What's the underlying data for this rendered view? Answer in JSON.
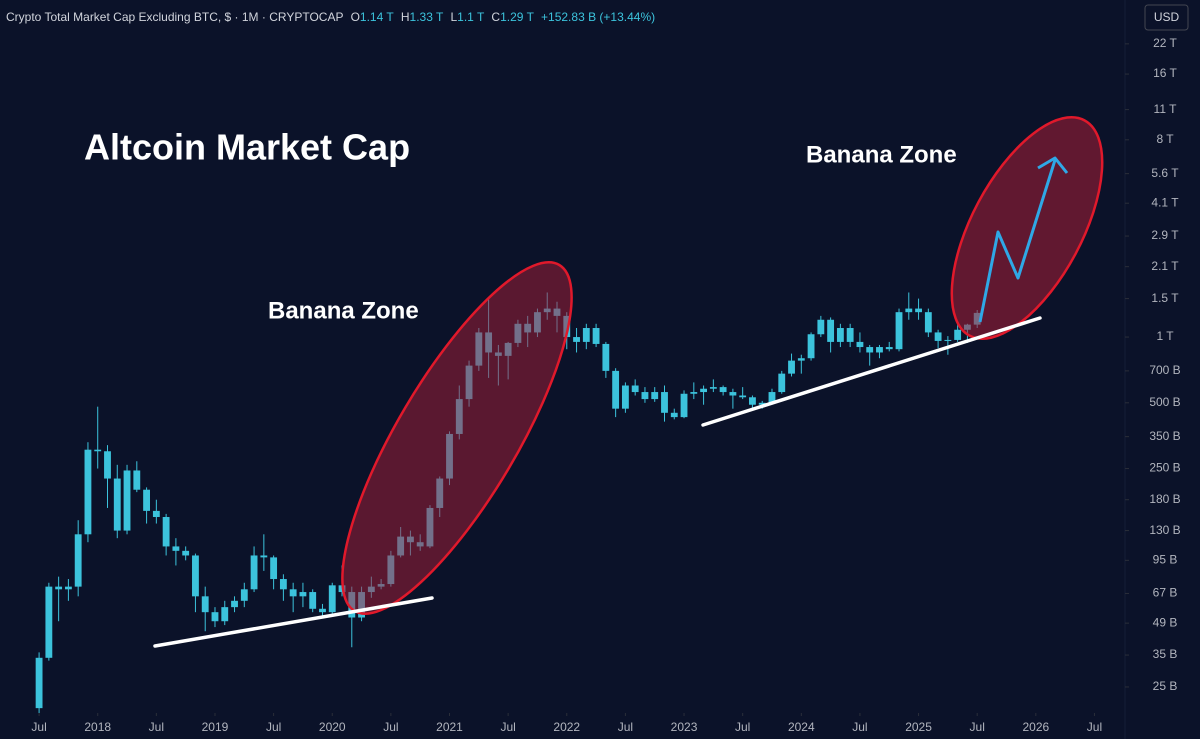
{
  "chart_data": {
    "type": "candlestick",
    "title": "Altcoin Market Cap",
    "header": {
      "symbol": "Crypto Total Market Cap Excluding BTC, $ · 1M · CRYPTOCAP",
      "open_label": "O",
      "open": "1.14 T",
      "high_label": "H",
      "high": "1.33 T",
      "low_label": "L",
      "low": "1.1 T",
      "close_label": "C",
      "close": "1.29 T",
      "change": "+152.83 B (+13.44%)"
    },
    "currency": "USD",
    "annotations": [
      "Banana Zone",
      "Banana Zone"
    ],
    "color": "#3cc3dc",
    "log_scale": true,
    "x": [
      "2017-07",
      "2017-08",
      "2017-09",
      "2017-10",
      "2017-11",
      "2017-12",
      "2018-01",
      "2018-02",
      "2018-03",
      "2018-04",
      "2018-05",
      "2018-06",
      "2018-07",
      "2018-08",
      "2018-09",
      "2018-10",
      "2018-11",
      "2018-12",
      "2019-01",
      "2019-02",
      "2019-03",
      "2019-04",
      "2019-05",
      "2019-06",
      "2019-07",
      "2019-08",
      "2019-09",
      "2019-10",
      "2019-11",
      "2019-12",
      "2020-01",
      "2020-02",
      "2020-03",
      "2020-04",
      "2020-05",
      "2020-06",
      "2020-07",
      "2020-08",
      "2020-09",
      "2020-10",
      "2020-11",
      "2020-12",
      "2021-01",
      "2021-02",
      "2021-03",
      "2021-04",
      "2021-05",
      "2021-06",
      "2021-07",
      "2021-08",
      "2021-09",
      "2021-10",
      "2021-11",
      "2021-12",
      "2022-01",
      "2022-02",
      "2022-03",
      "2022-04",
      "2022-05",
      "2022-06",
      "2022-07",
      "2022-08",
      "2022-09",
      "2022-10",
      "2022-11",
      "2022-12",
      "2023-01",
      "2023-02",
      "2023-03",
      "2023-04",
      "2023-05",
      "2023-06",
      "2023-07",
      "2023-08",
      "2023-09",
      "2023-10",
      "2023-11",
      "2023-12",
      "2024-01",
      "2024-02",
      "2024-03",
      "2024-04",
      "2024-05",
      "2024-06",
      "2024-07",
      "2024-08",
      "2024-09",
      "2024-10",
      "2024-11",
      "2024-12",
      "2025-01",
      "2025-02",
      "2025-03",
      "2025-04",
      "2025-05",
      "2025-06",
      "2025-07"
    ],
    "open": [
      20,
      34,
      72,
      70,
      72,
      125,
      305,
      300,
      225,
      130,
      245,
      200,
      160,
      150,
      110,
      105,
      100,
      65,
      55,
      50,
      58,
      62,
      70,
      100,
      98,
      78,
      70,
      65,
      68,
      57,
      55,
      73,
      68,
      52,
      68,
      72,
      74,
      100,
      122,
      115,
      110,
      165,
      225,
      360,
      520,
      740,
      1050,
      850,
      820,
      940,
      1150,
      1050,
      1300,
      1350,
      1250,
      1000,
      950,
      1100,
      930,
      700,
      470,
      600,
      560,
      520,
      560,
      450,
      430,
      550,
      560,
      580,
      590,
      560,
      540,
      530,
      490,
      500,
      560,
      680,
      780,
      800,
      1030,
      1200,
      950,
      1100,
      950,
      900,
      850,
      900,
      880,
      1300,
      1350,
      1300,
      1050,
      960,
      970,
      1080,
      1140
    ],
    "high": [
      36,
      75,
      80,
      78,
      145,
      330,
      480,
      320,
      260,
      260,
      270,
      205,
      180,
      155,
      120,
      110,
      102,
      72,
      58,
      62,
      65,
      75,
      110,
      125,
      100,
      82,
      75,
      75,
      70,
      60,
      75,
      90,
      72,
      72,
      80,
      78,
      105,
      135,
      130,
      125,
      170,
      230,
      370,
      600,
      780,
      1100,
      1500,
      920,
      950,
      1200,
      1250,
      1350,
      1600,
      1450,
      1300,
      1100,
      1150,
      1150,
      950,
      720,
      620,
      640,
      590,
      590,
      600,
      470,
      570,
      620,
      600,
      640,
      600,
      580,
      590,
      540,
      510,
      580,
      700,
      840,
      830,
      1050,
      1250,
      1230,
      1150,
      1150,
      1050,
      920,
      920,
      950,
      1350,
      1600,
      1500,
      1350,
      1080,
      1010,
      1150,
      1150,
      1330
    ],
    "low": [
      19,
      33,
      50,
      62,
      65,
      115,
      250,
      165,
      120,
      125,
      195,
      140,
      140,
      100,
      90,
      95,
      55,
      45,
      47,
      48,
      55,
      58,
      68,
      85,
      70,
      62,
      55,
      58,
      55,
      52,
      53,
      65,
      38,
      50,
      64,
      70,
      72,
      98,
      100,
      105,
      108,
      150,
      210,
      340,
      480,
      700,
      650,
      600,
      640,
      900,
      900,
      1000,
      1200,
      1050,
      880,
      850,
      880,
      900,
      650,
      430,
      450,
      540,
      500,
      505,
      410,
      420,
      425,
      520,
      490,
      560,
      540,
      470,
      520,
      470,
      470,
      490,
      550,
      660,
      680,
      780,
      1000,
      850,
      900,
      900,
      850,
      740,
      800,
      860,
      860,
      1200,
      1200,
      1000,
      890,
      830,
      950,
      940,
      1100
    ],
    "close": [
      34,
      72,
      70,
      72,
      125,
      305,
      300,
      225,
      130,
      245,
      200,
      160,
      150,
      110,
      105,
      100,
      65,
      55,
      50,
      58,
      62,
      70,
      100,
      98,
      78,
      70,
      65,
      68,
      57,
      55,
      73,
      68,
      52,
      68,
      72,
      74,
      100,
      122,
      115,
      110,
      165,
      225,
      360,
      520,
      740,
      1050,
      850,
      820,
      940,
      1150,
      1050,
      1300,
      1350,
      1250,
      1000,
      950,
      1100,
      930,
      700,
      470,
      600,
      560,
      520,
      560,
      450,
      430,
      550,
      560,
      580,
      590,
      560,
      540,
      530,
      490,
      500,
      560,
      680,
      780,
      800,
      1030,
      1200,
      950,
      1100,
      950,
      900,
      850,
      900,
      880,
      1300,
      1350,
      1300,
      1050,
      960,
      970,
      1080,
      1140,
      1290
    ],
    "xlim": [
      "2017-03",
      "2026-09"
    ],
    "xticks": [
      {
        "value": "2017-07",
        "label": "Jul"
      },
      {
        "value": "2018-01",
        "label": "2018"
      },
      {
        "value": "2018-07",
        "label": "Jul"
      },
      {
        "value": "2019-01",
        "label": "2019"
      },
      {
        "value": "2019-07",
        "label": "Jul"
      },
      {
        "value": "2020-01",
        "label": "2020"
      },
      {
        "value": "2020-07",
        "label": "Jul"
      },
      {
        "value": "2021-01",
        "label": "2021"
      },
      {
        "value": "2021-07",
        "label": "Jul"
      },
      {
        "value": "2022-01",
        "label": "2022"
      },
      {
        "value": "2022-07",
        "label": "Jul"
      },
      {
        "value": "2023-01",
        "label": "2023"
      },
      {
        "value": "2023-07",
        "label": "Jul"
      },
      {
        "value": "2024-01",
        "label": "2024"
      },
      {
        "value": "2024-07",
        "label": "Jul"
      },
      {
        "value": "2025-01",
        "label": "2025"
      },
      {
        "value": "2025-07",
        "label": "Jul"
      },
      {
        "value": "2026-01",
        "label": "2026"
      },
      {
        "value": "2026-07",
        "label": "Jul"
      }
    ],
    "ylim": [
      19,
      26000
    ],
    "yticks": [
      {
        "value": 22000,
        "label": "22 T"
      },
      {
        "value": 16000,
        "label": "16 T"
      },
      {
        "value": 11000,
        "label": "11 T"
      },
      {
        "value": 8000,
        "label": "8 T"
      },
      {
        "value": 5600,
        "label": "5.6 T"
      },
      {
        "value": 4100,
        "label": "4.1 T"
      },
      {
        "value": 2900,
        "label": "2.9 T"
      },
      {
        "value": 2100,
        "label": "2.1 T"
      },
      {
        "value": 1500,
        "label": "1.5 T"
      },
      {
        "value": 1000,
        "label": "1 T"
      },
      {
        "value": 700,
        "label": "700 B"
      },
      {
        "value": 500,
        "label": "500 B"
      },
      {
        "value": 350,
        "label": "350 B"
      },
      {
        "value": 250,
        "label": "250 B"
      },
      {
        "value": 180,
        "label": "180 B"
      },
      {
        "value": 130,
        "label": "130 B"
      },
      {
        "value": 95,
        "label": "95 B"
      },
      {
        "value": 67,
        "label": "67 B"
      },
      {
        "value": 49,
        "label": "49 B"
      },
      {
        "value": 35,
        "label": "35 B"
      },
      {
        "value": 25,
        "label": "25 B"
      }
    ]
  }
}
